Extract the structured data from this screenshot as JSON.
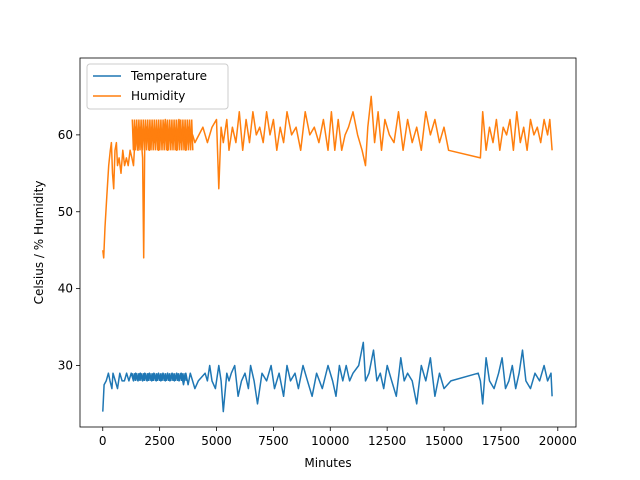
{
  "chart_data": {
    "type": "line",
    "title": "",
    "xlabel": "Minutes",
    "ylabel": "Celsius / % Humidity",
    "xlim": [
      -1000,
      20800
    ],
    "ylim": [
      22,
      70
    ],
    "xticks": [
      0,
      2500,
      5000,
      7500,
      10000,
      12500,
      15000,
      17500,
      20000
    ],
    "xtick_labels": [
      "0",
      "2500",
      "5000",
      "7500",
      "10000",
      "12500",
      "15000",
      "17500",
      "20000"
    ],
    "yticks": [
      30,
      40,
      50,
      60
    ],
    "ytick_labels": [
      "30",
      "40",
      "50",
      "60"
    ],
    "grid": false,
    "legend": {
      "position": "top-left"
    },
    "series": [
      {
        "name": "Temperature",
        "color": "#1f77b4",
        "x": [
          0,
          60,
          150,
          250,
          320,
          400,
          450,
          550,
          650,
          750,
          850,
          950,
          1050,
          1150,
          1250,
          1350,
          1450,
          1550,
          1650,
          1750,
          1850,
          1950,
          2050,
          2150,
          2250,
          2350,
          2450,
          2550,
          2650,
          2750,
          2850,
          2950,
          3050,
          3150,
          3250,
          3350,
          3450,
          3550,
          3650,
          3750,
          3850,
          3950,
          4050,
          4200,
          4500,
          4600,
          4700,
          4800,
          4950,
          5100,
          5200,
          5300,
          5450,
          5550,
          5650,
          5800,
          5950,
          6100,
          6250,
          6400,
          6500,
          6650,
          6800,
          7000,
          7200,
          7400,
          7550,
          7750,
          7950,
          8100,
          8250,
          8450,
          8600,
          8800,
          9000,
          9200,
          9400,
          9650,
          9900,
          10100,
          10250,
          10400,
          10550,
          10700,
          10850,
          11000,
          11250,
          11450,
          11550,
          11700,
          11900,
          12050,
          12200,
          12350,
          12500,
          12700,
          12900,
          13100,
          13250,
          13400,
          13600,
          13800,
          14000,
          14200,
          14400,
          14600,
          14800,
          15000,
          15300,
          16500,
          16600,
          16700,
          16850,
          17000,
          17200,
          17400,
          17550,
          17700,
          17850,
          18000,
          18150,
          18300,
          18450,
          18600,
          18800,
          19000,
          19200,
          19400,
          19550,
          19700,
          19750
        ],
        "values": [
          24,
          27.5,
          28,
          29,
          28,
          27,
          29,
          28,
          27,
          29,
          28,
          28,
          29,
          28,
          29,
          28,
          29,
          28,
          29,
          28,
          29,
          28,
          29,
          28,
          29,
          28,
          29,
          28,
          29,
          28,
          29,
          28,
          29,
          28,
          29,
          28,
          29,
          27.5,
          29,
          27.5,
          29,
          28,
          27,
          28,
          29,
          28,
          30,
          28,
          27,
          30,
          28,
          24,
          29,
          28,
          29,
          30,
          26,
          28,
          29,
          27,
          30,
          28,
          25,
          29,
          28,
          30,
          27,
          29,
          26,
          30,
          28,
          29,
          27,
          30,
          28,
          26,
          29,
          27,
          30,
          28,
          26,
          30,
          28,
          30,
          28,
          29,
          30,
          33,
          28,
          29,
          32,
          28,
          29,
          27,
          30,
          28,
          26,
          31,
          28,
          29,
          28,
          25,
          30,
          28,
          31,
          26,
          29,
          27,
          28,
          29,
          28,
          25,
          31,
          28,
          27,
          29,
          31,
          27,
          28,
          30,
          27,
          29,
          32,
          28,
          27,
          29,
          28,
          30,
          28,
          29,
          26
        ],
        "x_dense": [
          1300,
          3700
        ],
        "y_dense": [
          28,
          29
        ]
      },
      {
        "name": "Humidity",
        "color": "#ff7f0e",
        "x": [
          0,
          40,
          100,
          180,
          260,
          330,
          380,
          430,
          480,
          540,
          600,
          650,
          720,
          800,
          880,
          960,
          1040,
          1120,
          1200,
          1280,
          1350,
          1450,
          1550,
          1650,
          1750,
          1800,
          1850,
          1950,
          2050,
          2150,
          2250,
          2350,
          2450,
          2550,
          2650,
          2750,
          2850,
          2950,
          3050,
          3150,
          3250,
          3350,
          3450,
          3550,
          3650,
          3750,
          3850,
          3950,
          4050,
          4400,
          4600,
          4800,
          5000,
          5100,
          5200,
          5300,
          5450,
          5550,
          5700,
          5850,
          6000,
          6150,
          6300,
          6450,
          6600,
          6750,
          6900,
          7050,
          7200,
          7350,
          7500,
          7650,
          7800,
          7950,
          8100,
          8300,
          8500,
          8700,
          8900,
          9100,
          9300,
          9500,
          9700,
          9900,
          10050,
          10200,
          10350,
          10500,
          10650,
          10800,
          11000,
          11200,
          11400,
          11550,
          11650,
          11800,
          11950,
          12100,
          12250,
          12400,
          12600,
          12800,
          13000,
          13200,
          13400,
          13600,
          13800,
          14000,
          14200,
          14400,
          14600,
          14800,
          15000,
          15200,
          16600,
          16700,
          16850,
          17000,
          17150,
          17300,
          17450,
          17600,
          17750,
          17900,
          18050,
          18200,
          18350,
          18500,
          18650,
          18800,
          18950,
          19100,
          19250,
          19400,
          19550,
          19650,
          19750
        ],
        "values": [
          45,
          44,
          48,
          52,
          56,
          58,
          59,
          55,
          53,
          58,
          59,
          56,
          57,
          55,
          58,
          56,
          57,
          56,
          58,
          57,
          56,
          61,
          58,
          61,
          57,
          44,
          60,
          61,
          58,
          61,
          59,
          61,
          58,
          61,
          59,
          62,
          58,
          61,
          59,
          61,
          58,
          62,
          59,
          61,
          58,
          61,
          59,
          60,
          59,
          61,
          59,
          61,
          62,
          53,
          61,
          59,
          62,
          58,
          61,
          59,
          63,
          58,
          62,
          59,
          63,
          60,
          61,
          59,
          63,
          60,
          62,
          58,
          61,
          59,
          63,
          60,
          61,
          58,
          63,
          60,
          61,
          59,
          62,
          58,
          63,
          58,
          62,
          58,
          60,
          61,
          63,
          60,
          58,
          56,
          61,
          65,
          59,
          63,
          58,
          62,
          60,
          59,
          63,
          58,
          62,
          59,
          61,
          58,
          63,
          60,
          62,
          59,
          61,
          58,
          57,
          63,
          58,
          61,
          59,
          62,
          58,
          61,
          60,
          62,
          58,
          63,
          59,
          61,
          58,
          62,
          60,
          61,
          59,
          62,
          60,
          62,
          58
        ],
        "x_dense": [
          1300,
          4000
        ],
        "y_dense": [
          58,
          62
        ]
      }
    ]
  }
}
